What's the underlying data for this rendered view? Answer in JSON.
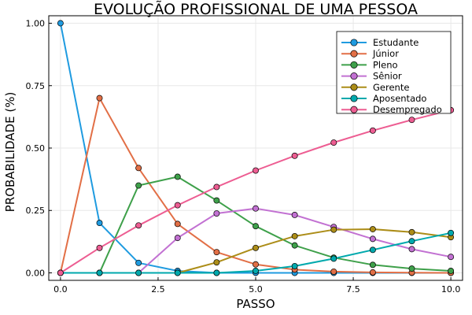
{
  "chart_data": {
    "type": "line",
    "title": "EVOLUÇÃO PROFISSIONAL DE UMA PESSOA",
    "xlabel": "PASSO",
    "ylabel": "PROBABILIDADE (%)",
    "xlim": [
      -0.3,
      10.3
    ],
    "ylim": [
      -0.03,
      1.03
    ],
    "xticks": [
      0,
      2.5,
      5,
      7.5,
      10
    ],
    "xtick_labels": [
      "0.0",
      "2.5",
      "5.0",
      "7.5",
      "10.0"
    ],
    "yticks": [
      0,
      0.25,
      0.5,
      0.75,
      1.0
    ],
    "ytick_labels": [
      "0.00",
      "0.25",
      "0.50",
      "0.75",
      "1.00"
    ],
    "grid": true,
    "legend_position": "top-right",
    "x": [
      0,
      1,
      2,
      3,
      4,
      5,
      6,
      7,
      8,
      9,
      10
    ],
    "series": [
      {
        "name": "Estudante",
        "color": "#1f9be0",
        "values": [
          1.0,
          0.2,
          0.04,
          0.008,
          0.0,
          0.0,
          0.0,
          0.0,
          0.0,
          0.0,
          0.0
        ]
      },
      {
        "name": "Júnior",
        "color": "#e26f46",
        "values": [
          0.0,
          0.7,
          0.42,
          0.196,
          0.083,
          0.034,
          0.013,
          0.005,
          0.002,
          0.001,
          0.0
        ]
      },
      {
        "name": "Pleno",
        "color": "#3ea04a",
        "values": [
          0.0,
          0.0,
          0.35,
          0.385,
          0.29,
          0.187,
          0.11,
          0.061,
          0.032,
          0.017,
          0.008
        ]
      },
      {
        "name": "Sênior",
        "color": "#c271d2",
        "values": [
          0.0,
          0.0,
          0.0,
          0.14,
          0.238,
          0.258,
          0.232,
          0.184,
          0.136,
          0.095,
          0.064
        ]
      },
      {
        "name": "Gerente",
        "color": "#ac8d18",
        "values": [
          0.0,
          0.0,
          0.0,
          0.0,
          0.042,
          0.1,
          0.147,
          0.173,
          0.175,
          0.163,
          0.143
        ]
      },
      {
        "name": "Aposentado",
        "color": "#00a9ad",
        "values": [
          0.0,
          0.0,
          0.0,
          0.0,
          0.0,
          0.008,
          0.027,
          0.057,
          0.092,
          0.127,
          0.16
        ]
      },
      {
        "name": "Desempregado",
        "color": "#ed5d92",
        "values": [
          0.0,
          0.1,
          0.19,
          0.271,
          0.344,
          0.41,
          0.469,
          0.522,
          0.57,
          0.613,
          0.652
        ]
      }
    ]
  }
}
